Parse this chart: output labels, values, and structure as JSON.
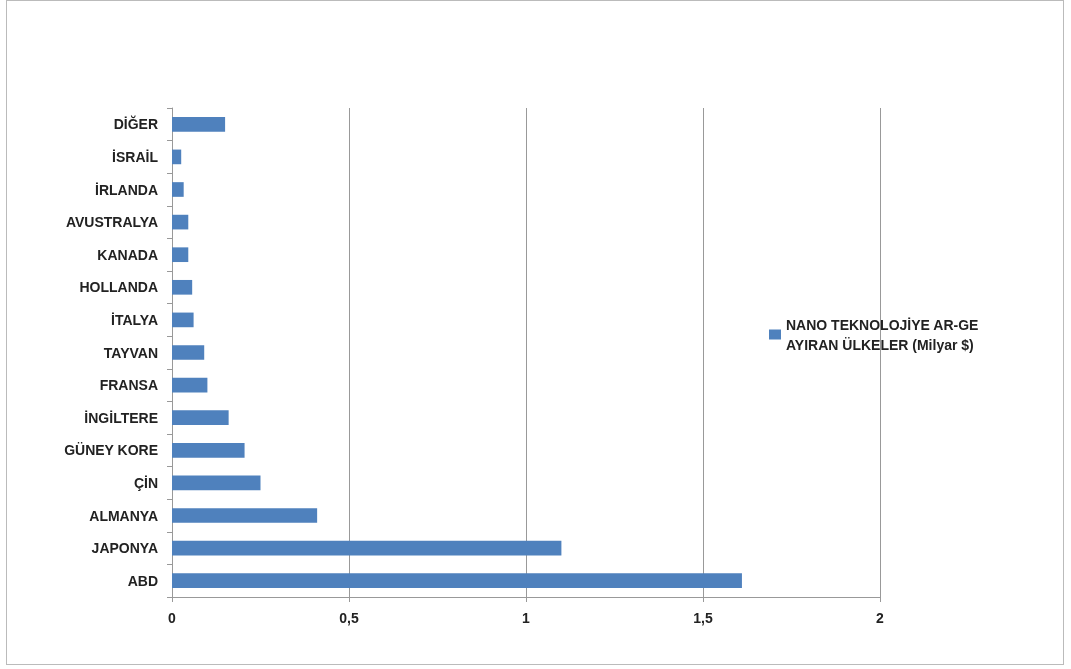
{
  "chart_data": {
    "type": "bar",
    "orientation": "horizontal",
    "categories": [
      "DİĞER",
      "İSRAİL",
      "İRLANDA",
      "AVUSTRALYA",
      "KANADA",
      "HOLLANDA",
      "İTALYA",
      "TAYVAN",
      "FRANSA",
      "İNGİLTERE",
      "GÜNEY KORE",
      "ÇİN",
      "ALMANYA",
      "JAPONYA",
      "ABD"
    ],
    "series": [
      {
        "name": "NANO TEKNOLOJİYE AR-GE AYIRAN ÜLKELER (Milyar $)",
        "color": "#4f81bd",
        "values": [
          0.15,
          0.026,
          0.033,
          0.046,
          0.046,
          0.057,
          0.061,
          0.091,
          0.1,
          0.16,
          0.205,
          0.25,
          0.41,
          1.1,
          1.61
        ]
      }
    ],
    "xlim": [
      0,
      2
    ],
    "xticks": [
      0,
      {
        "value": 0.5,
        "label": "0,5"
      },
      1,
      {
        "value": 1.5,
        "label": "1,5"
      },
      2
    ],
    "grid": "x",
    "legend": "right"
  }
}
